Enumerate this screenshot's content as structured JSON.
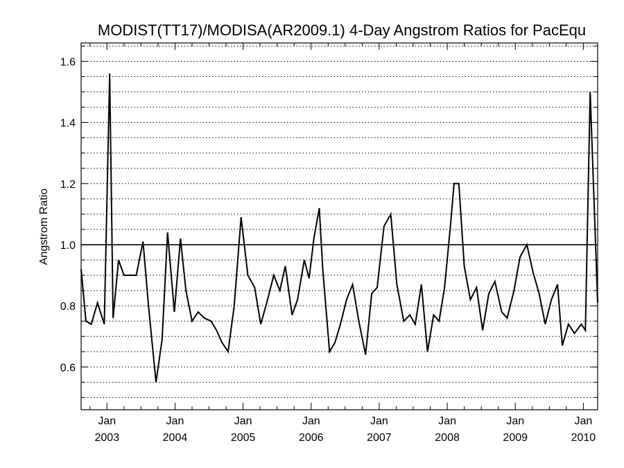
{
  "chart_data": {
    "type": "line",
    "title": "MODIST(TT17)/MODISA(AR2009.1) 4-Day Angstrom Ratios for PacEqu",
    "xlabel": "",
    "ylabel": "Angstrom Ratio",
    "xlim": [
      2002.62,
      2010.21
    ],
    "ylim": [
      0.46,
      1.66
    ],
    "y_ticks": [
      0.6,
      0.8,
      1.0,
      1.2,
      1.4,
      1.6
    ],
    "y_tick_labels": [
      "0.6",
      "0.8",
      "1.0",
      "1.2",
      "1.4",
      "1.6"
    ],
    "y_minor_step": 0.05,
    "grid": "horizontal-dotted",
    "reference_line": 1.0,
    "x_ticks": [
      {
        "x": 2003,
        "month": "Jan",
        "year": "2003"
      },
      {
        "x": 2004,
        "month": "Jan",
        "year": "2004"
      },
      {
        "x": 2005,
        "month": "Jan",
        "year": "2005"
      },
      {
        "x": 2006,
        "month": "Jan",
        "year": "2006"
      },
      {
        "x": 2007,
        "month": "Jan",
        "year": "2007"
      },
      {
        "x": 2008,
        "month": "Jan",
        "year": "2008"
      },
      {
        "x": 2009,
        "month": "Jan",
        "year": "2009"
      },
      {
        "x": 2010,
        "month": "Jan",
        "year": "2010"
      }
    ],
    "series": [
      {
        "color": "#000000",
        "x": [
          2002.62,
          2002.69,
          2002.77,
          2002.86,
          2002.96,
          2003.04,
          2003.09,
          2003.17,
          2003.25,
          2003.43,
          2003.53,
          2003.61,
          2003.72,
          2003.81,
          2003.89,
          2003.99,
          2004.08,
          2004.16,
          2004.25,
          2004.34,
          2004.43,
          2004.53,
          2004.61,
          2004.69,
          2004.78,
          2004.87,
          2004.97,
          2005.07,
          2005.17,
          2005.26,
          2005.36,
          2005.45,
          2005.54,
          2005.62,
          2005.72,
          2005.8,
          2005.9,
          2005.97,
          2006.04,
          2006.12,
          2006.17,
          2006.27,
          2006.35,
          2006.43,
          2006.52,
          2006.61,
          2006.7,
          2006.8,
          2006.89,
          2006.97,
          2007.07,
          2007.17,
          2007.26,
          2007.36,
          2007.45,
          2007.53,
          2007.62,
          2007.71,
          2007.8,
          2007.88,
          2007.96,
          2008.05,
          2008.1,
          2008.17,
          2008.25,
          2008.34,
          2008.43,
          2008.52,
          2008.61,
          2008.7,
          2008.8,
          2008.88,
          2008.98,
          2009.07,
          2009.17,
          2009.26,
          2009.35,
          2009.44,
          2009.53,
          2009.62,
          2009.69,
          2009.78,
          2009.87,
          2009.97,
          2010.03,
          2010.1,
          2010.21
        ],
        "y": [
          0.92,
          0.75,
          0.74,
          0.81,
          0.74,
          1.56,
          0.76,
          0.95,
          0.9,
          0.9,
          1.01,
          0.8,
          0.55,
          0.69,
          1.04,
          0.78,
          1.02,
          0.85,
          0.75,
          0.78,
          0.76,
          0.75,
          0.72,
          0.68,
          0.65,
          0.8,
          1.09,
          0.9,
          0.86,
          0.74,
          0.82,
          0.9,
          0.85,
          0.93,
          0.77,
          0.82,
          0.95,
          0.89,
          1.02,
          1.12,
          0.92,
          0.65,
          0.68,
          0.74,
          0.82,
          0.87,
          0.75,
          0.64,
          0.84,
          0.86,
          1.06,
          1.1,
          0.87,
          0.75,
          0.77,
          0.74,
          0.87,
          0.65,
          0.77,
          0.75,
          0.86,
          1.07,
          1.2,
          1.2,
          0.93,
          0.82,
          0.86,
          0.72,
          0.84,
          0.88,
          0.78,
          0.76,
          0.85,
          0.96,
          1.0,
          0.91,
          0.84,
          0.74,
          0.82,
          0.87,
          0.67,
          0.74,
          0.71,
          0.74,
          0.72,
          1.5,
          0.81
        ]
      }
    ]
  }
}
